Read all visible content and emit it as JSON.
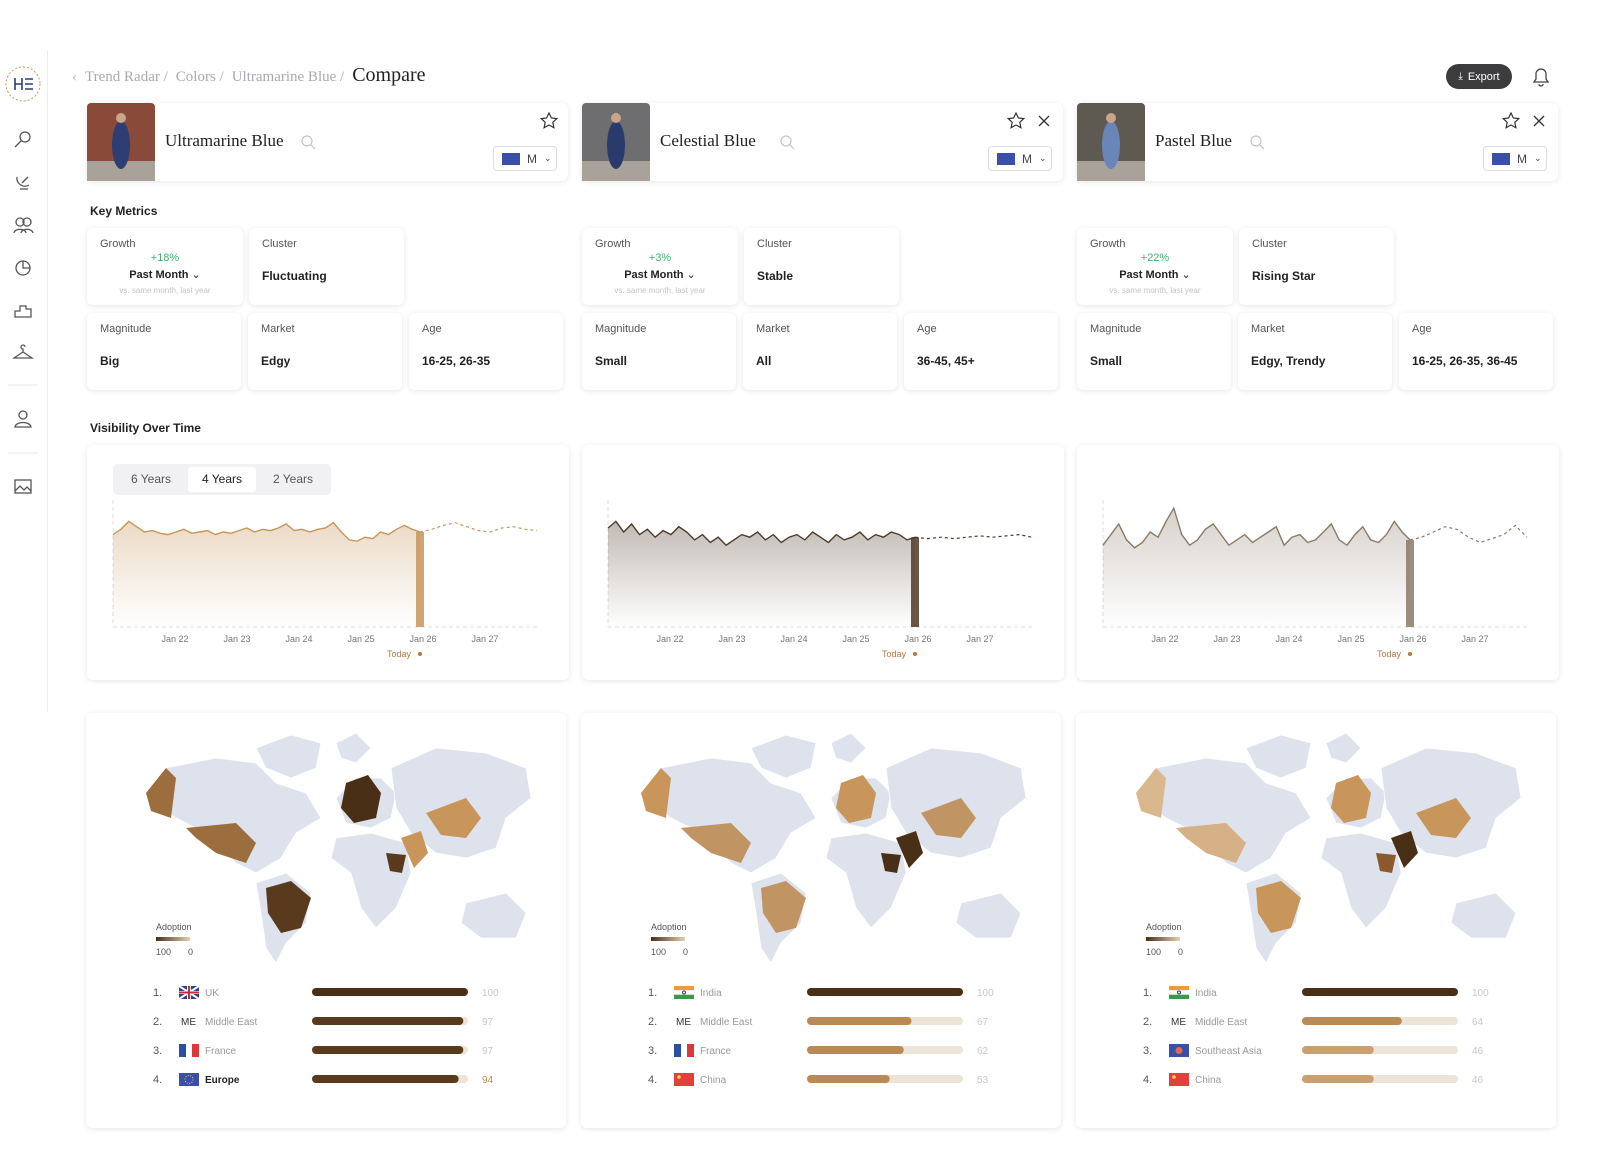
{
  "breadcrumb": [
    "Trend Radar /",
    "Colors /",
    "Ultramarine Blue /"
  ],
  "page_title": "Compare",
  "export_label": "Export",
  "labels": {
    "key_metrics": "Key Metrics",
    "visibility": "Visibility Over Time",
    "growth": "Growth",
    "cluster": "Cluster",
    "magnitude": "Magnitude",
    "market": "Market",
    "age": "Age",
    "adoption": "Adoption",
    "size": "M",
    "today": "Today"
  },
  "time_ranges": [
    "6 Years",
    "4 Years",
    "2 Years"
  ],
  "x_labels": [
    "Jan 22",
    "Jan 23",
    "Jan 24",
    "Jan 25",
    "Jan 26",
    "Jan 27"
  ],
  "adoption_scale": [
    100,
    0
  ],
  "compare": [
    {
      "name": "Ultramarine Blue",
      "growth": "+18%",
      "period": "Past Month",
      "note": "vs. same month, last year",
      "cluster": "Fluctuating",
      "magnitude": "Big",
      "market": "Edgy",
      "age": "16-25, 26-35",
      "color": "#c8955a",
      "visibility": [
        70,
        74,
        80,
        76,
        72,
        73,
        71,
        70,
        72,
        74,
        71,
        72,
        73,
        70,
        72,
        71,
        73,
        75,
        72,
        74,
        73,
        75,
        78,
        73,
        74,
        72,
        74,
        75,
        79,
        72,
        66,
        65,
        68,
        67,
        72,
        70,
        74,
        77,
        74,
        72
      ],
      "forecast": [
        72,
        74,
        77,
        79,
        76,
        73,
        72,
        75,
        76,
        74,
        73
      ],
      "ranking": [
        {
          "rank": "1.",
          "name": "UK",
          "flag": "uk",
          "value": 100,
          "bar_color": "#4a2f17"
        },
        {
          "rank": "2.",
          "badge": "ME",
          "name": "Middle East",
          "flag": "me",
          "value": 97,
          "bar_color": "#5a3a1c"
        },
        {
          "rank": "3.",
          "name": "France",
          "flag": "fr",
          "value": 97,
          "bar_color": "#5a3a1c"
        },
        {
          "rank": "4.",
          "name": "Europe",
          "flag": "eu",
          "value": 94,
          "bar_color": "#5a3a1c"
        }
      ]
    },
    {
      "name": "Celestial Blue",
      "growth": "+3%",
      "period": "Past Month",
      "note": "vs. same month, last year",
      "cluster": "Stable",
      "magnitude": "Small",
      "market": "All",
      "age": "36-45, 45+",
      "color": "#4e3a28",
      "visibility": [
        75,
        80,
        72,
        78,
        70,
        74,
        68,
        73,
        70,
        76,
        72,
        66,
        70,
        64,
        68,
        62,
        66,
        70,
        68,
        72,
        66,
        70,
        64,
        68,
        70,
        66,
        72,
        68,
        64,
        70,
        66,
        68,
        72,
        66,
        70,
        68,
        72,
        70,
        66,
        68
      ],
      "forecast": [
        68,
        67,
        68,
        67,
        68,
        69,
        68,
        69,
        70,
        68
      ],
      "ranking": [
        {
          "rank": "1.",
          "name": "India",
          "flag": "in",
          "value": 100,
          "bar_color": "#4a2f17"
        },
        {
          "rank": "2.",
          "badge": "ME",
          "name": "Middle East",
          "flag": "me",
          "value": 67,
          "bar_color": "#b98a55"
        },
        {
          "rank": "3.",
          "name": "France",
          "flag": "fr",
          "value": 62,
          "bar_color": "#b98a55"
        },
        {
          "rank": "4.",
          "name": "China",
          "flag": "cn",
          "value": 53,
          "bar_color": "#b98a55"
        }
      ]
    },
    {
      "name": "Pastel Blue",
      "growth": "+22%",
      "period": "Past Month",
      "note": "vs. same month, last year",
      "cluster": "Rising Star",
      "magnitude": "Small",
      "market": "Edgy, Trendy",
      "age": "16-25, 26-35, 36-45",
      "color": "#8a7a68",
      "visibility": [
        62,
        70,
        78,
        66,
        60,
        64,
        72,
        68,
        80,
        90,
        70,
        62,
        66,
        74,
        78,
        70,
        62,
        66,
        70,
        64,
        68,
        72,
        76,
        62,
        68,
        70,
        64,
        66,
        72,
        78,
        66,
        62,
        70,
        76,
        66,
        64,
        70,
        80,
        72,
        66
      ],
      "forecast": [
        66,
        68,
        72,
        76,
        74,
        68,
        64,
        67,
        70,
        77,
        68
      ],
      "ranking": [
        {
          "rank": "1.",
          "name": "India",
          "flag": "in",
          "value": 100,
          "bar_color": "#4a2f17"
        },
        {
          "rank": "2.",
          "badge": "ME",
          "name": "Middle East",
          "flag": "me",
          "value": 64,
          "bar_color": "#b98a55"
        },
        {
          "rank": "3.",
          "name": "Southeast Asia",
          "flag": "sea",
          "value": 46,
          "bar_color": "#c9a06e"
        },
        {
          "rank": "4.",
          "name": "China",
          "flag": "cn",
          "value": 46,
          "bar_color": "#c9a06e"
        }
      ]
    }
  ]
}
